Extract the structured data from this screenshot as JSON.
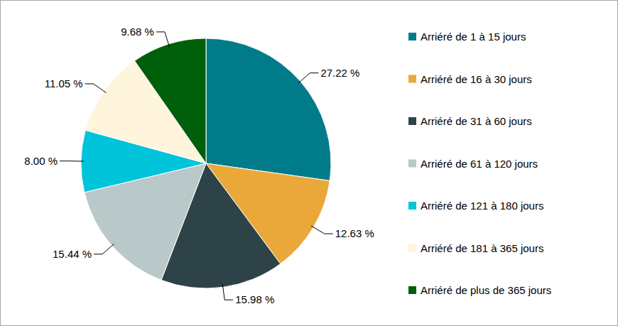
{
  "chart_data": {
    "type": "pie",
    "categories": [
      "Arriéré de 1 à 15 jours",
      "Arriéré de 16 à 30 jours",
      "Arriéré de 31 à 60 jours",
      "Arriéré de 61 à 120 jours",
      "Arriéré de 121 à 180 jours",
      "Arriéré de 181 à 365 jours",
      "Arriéré de plus de 365 jours"
    ],
    "values": [
      27.22,
      12.63,
      15.98,
      15.44,
      8.0,
      11.05,
      9.68
    ],
    "value_labels": [
      "27.22 %",
      "12.63 %",
      "15.98 %",
      "15.44 %",
      "8.00 %",
      "11.05 %",
      "9.68 %"
    ],
    "colors": [
      "#007b8a",
      "#eba83a",
      "#2e4347",
      "#b9c9c9",
      "#00c4d9",
      "#fff5dc",
      "#005f0a"
    ],
    "data_labels": true,
    "legend": "right"
  }
}
